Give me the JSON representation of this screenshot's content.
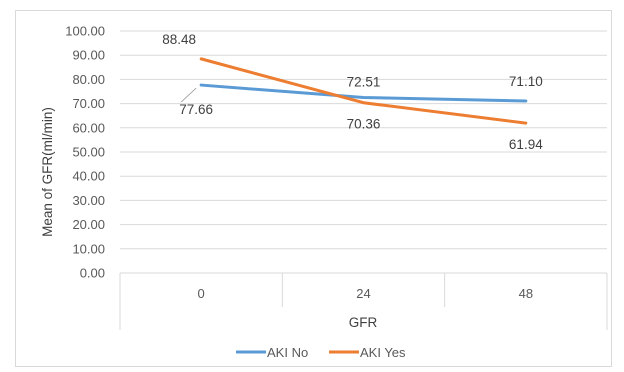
{
  "chart_data": {
    "type": "line",
    "categories": [
      "0",
      "24",
      "48"
    ],
    "series": [
      {
        "name": "AKI No",
        "values": [
          77.66,
          72.51,
          71.1
        ],
        "color": "#5b9bd5"
      },
      {
        "name": "AKI Yes",
        "values": [
          88.48,
          70.36,
          61.94
        ],
        "color": "#ed7d31"
      }
    ],
    "data_labels": [
      {
        "series": 0,
        "values": [
          "77.66",
          "72.51",
          "71.10"
        ]
      },
      {
        "series": 1,
        "values": [
          "88.48",
          "70.36",
          "61.94"
        ]
      }
    ],
    "title": "",
    "xlabel": "GFR",
    "ylabel": "Mean of GFR(ml/min)",
    "ylim": [
      0,
      100
    ],
    "y_step": 10,
    "y_tick_labels": [
      "0.00",
      "10.00",
      "20.00",
      "30.00",
      "40.00",
      "50.00",
      "60.00",
      "70.00",
      "80.00",
      "90.00",
      "100.00"
    ],
    "grid": true,
    "legend": "bottom-center"
  }
}
